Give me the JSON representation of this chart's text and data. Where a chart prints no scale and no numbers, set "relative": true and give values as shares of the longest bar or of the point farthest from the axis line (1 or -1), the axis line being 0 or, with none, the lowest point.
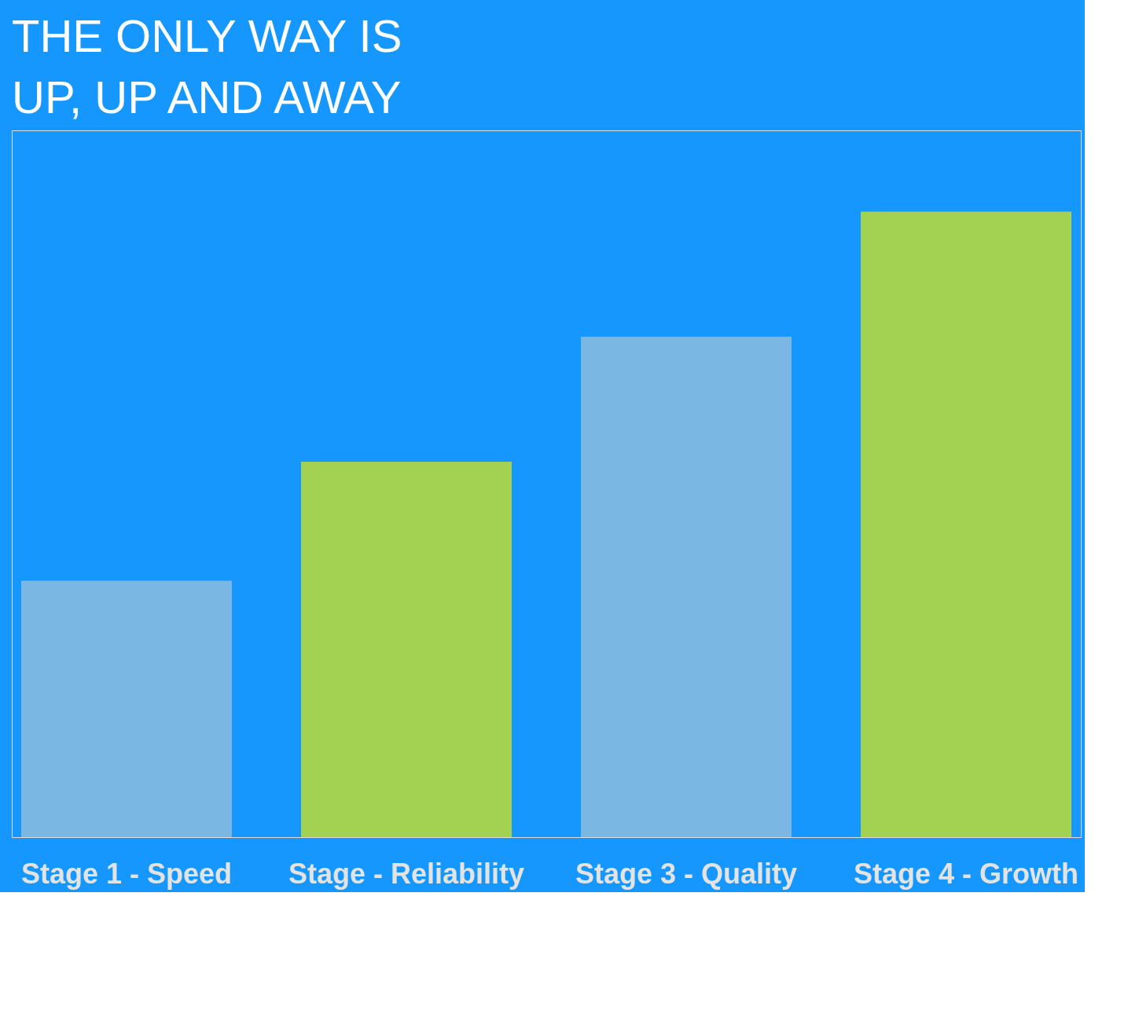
{
  "chart_data": {
    "type": "bar",
    "title": "THE ONLY WAY IS UP, UP AND AWAY",
    "relative": true,
    "categories": [
      "Stage 1 - Speed",
      "Stage - Reliability",
      "Stage 3 - Quality",
      "Stage 4 - Growth"
    ],
    "values": [
      0.41,
      0.6,
      0.8,
      1.0
    ],
    "colors": [
      "#7ab8e3",
      "#a3d152",
      "#7ab8e3",
      "#a3d152"
    ],
    "grid": false
  }
}
